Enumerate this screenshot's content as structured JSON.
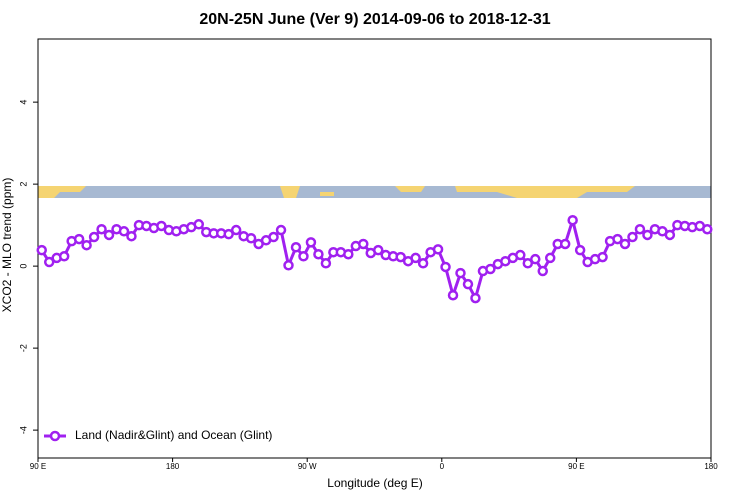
{
  "chart_data": {
    "type": "line",
    "title": "20N-25N June (Ver 9)   2014-09-06 to 2018-12-31",
    "x_label": "Longitude (deg E)",
    "y_label": "XCO2 - MLO trend (ppm)",
    "x": [
      92.5,
      97.5,
      102.5,
      107.5,
      112.5,
      117.5,
      122.5,
      127.5,
      132.5,
      137.5,
      142.5,
      147.5,
      152.5,
      157.5,
      162.5,
      167.5,
      172.5,
      177.5,
      182.5,
      187.5,
      192.5,
      197.5,
      202.5,
      207.5,
      212.5,
      217.5,
      222.5,
      227.5,
      232.5,
      237.5,
      242.5,
      247.5,
      252.5,
      257.5,
      262.5,
      267.5,
      272.5,
      277.5,
      282.5,
      287.5,
      292.5,
      297.5,
      302.5,
      307.5,
      312.5,
      317.5,
      322.5,
      327.5,
      332.5,
      337.5,
      342.5,
      347.5,
      352.5,
      357.5,
      362.5,
      367.5,
      372.5,
      377.5,
      382.5,
      387.5,
      392.5,
      397.5,
      402.5,
      407.5,
      412.5,
      417.5,
      422.5,
      427.5,
      432.5,
      437.5,
      442.5,
      447.5,
      452.5,
      457.5,
      462.5,
      467.5,
      472.5,
      477.5,
      482.5,
      487.5,
      492.5,
      497.5,
      502.5,
      507.5,
      512.5,
      517.5,
      522.5,
      527.5,
      532.5,
      537.5
    ],
    "series": [
      {
        "name": "Land (Nadir&Glint) and Ocean (Glint)",
        "color": "#a020f0",
        "values": [
          0.39,
          0.1,
          0.2,
          0.24,
          0.61,
          0.66,
          0.51,
          0.71,
          0.9,
          0.76,
          0.9,
          0.85,
          0.73,
          1.0,
          0.98,
          0.93,
          0.98,
          0.88,
          0.85,
          0.9,
          0.95,
          1.02,
          0.83,
          0.8,
          0.8,
          0.78,
          0.88,
          0.73,
          0.68,
          0.54,
          0.63,
          0.71,
          0.88,
          0.02,
          0.46,
          0.24,
          0.58,
          0.29,
          0.07,
          0.34,
          0.34,
          0.29,
          0.49,
          0.54,
          0.32,
          0.39,
          0.27,
          0.24,
          0.22,
          0.12,
          0.2,
          0.07,
          0.34,
          0.41,
          -0.02,
          -0.71,
          -0.17,
          -0.44,
          -0.78,
          -0.12,
          -0.07,
          0.05,
          0.12,
          0.2,
          0.27,
          0.07,
          0.17,
          -0.12,
          0.2,
          0.54,
          0.54,
          1.12,
          0.39,
          0.1,
          0.17,
          0.22,
          0.61,
          0.66,
          0.54,
          0.71,
          0.9,
          0.76,
          0.9,
          0.85,
          0.76,
          1.0,
          0.98,
          0.95,
          0.98,
          0.9
        ]
      }
    ],
    "xlim": [
      90,
      540
    ],
    "xticks": [
      {
        "value": 90,
        "label": "90 E"
      },
      180,
      {
        "value": 270,
        "label": "90 W"
      },
      {
        "value": 360,
        "label": "0"
      },
      {
        "value": 450,
        "label": "90 E"
      },
      {
        "value": 540,
        "label": "180"
      }
    ],
    "ylim": [
      -4.68,
      5.54
    ],
    "yticks": [
      -4,
      -2,
      0,
      2,
      4
    ],
    "legend": "bottom-left"
  }
}
